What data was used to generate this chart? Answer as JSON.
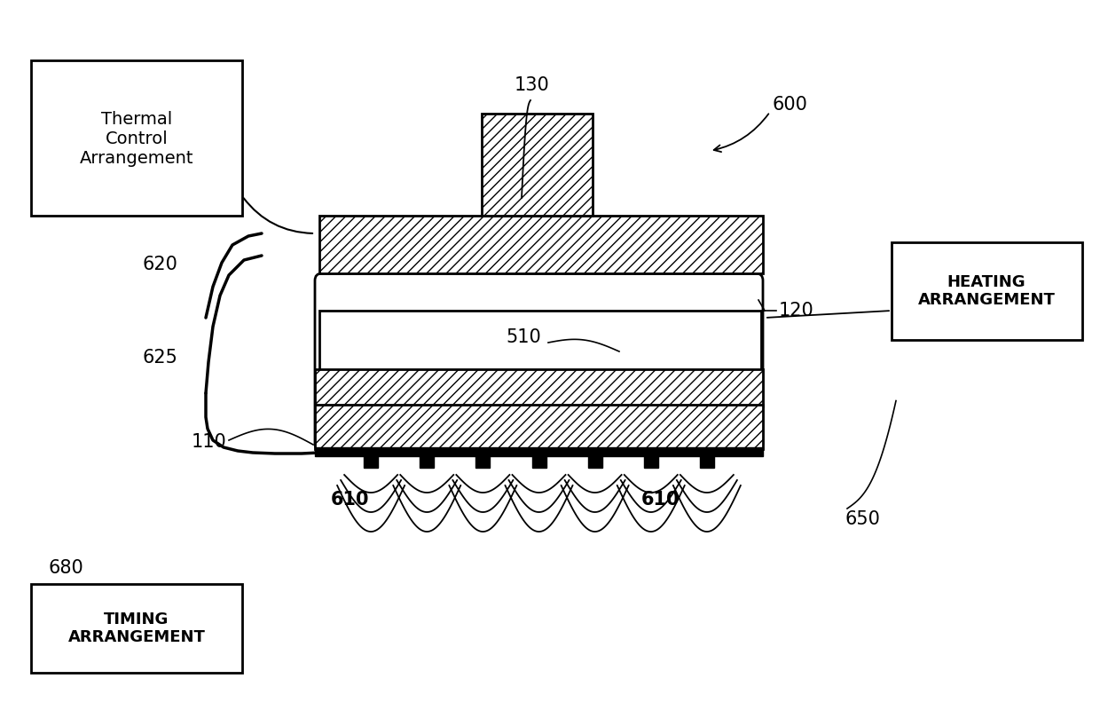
{
  "bg_color": "#ffffff",
  "line_color": "#000000",
  "label_130": "130",
  "label_600": "600",
  "label_120": "120",
  "label_510": "510",
  "label_620": "620",
  "label_625": "625",
  "label_110": "110",
  "label_610a": "610",
  "label_610b": "610",
  "label_680": "680",
  "label_650": "650",
  "box_thermal": "Thermal\nControl\nArrangement",
  "box_heating": "HEATING\nARRANGEMENT",
  "box_timing": "TIMING\nARRANGEMENT"
}
